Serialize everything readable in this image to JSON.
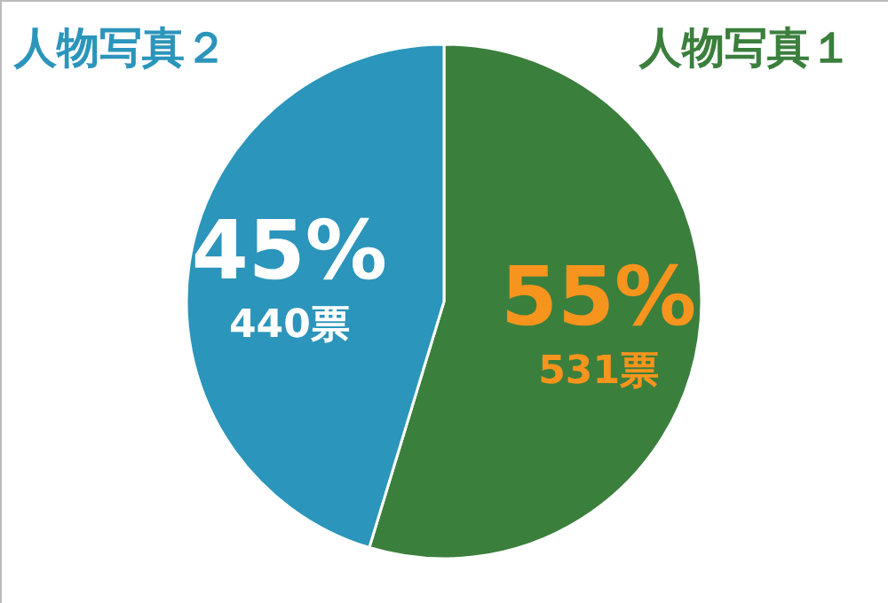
{
  "chart_data": {
    "type": "pie",
    "categories": [
      "人物写真１",
      "人物写真２"
    ],
    "values": [
      531,
      440
    ],
    "colors": [
      "#3b7f3d",
      "#2b95bb"
    ],
    "value_labels": [
      "531票",
      "440票"
    ],
    "annotations": [
      "55%",
      "45%"
    ],
    "legend": false
  }
}
